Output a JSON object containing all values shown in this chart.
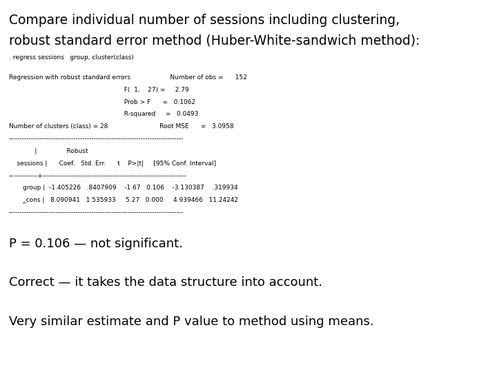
{
  "title_line1": "Compare individual number of sessions including clustering,",
  "title_line2": "robust standard error method (Huber-White-sandwich method):",
  "command_line": ". regress sessions   group, cluster(class)",
  "stata_line1": "Regression with robust standard errors                    Number of obs =      152",
  "stata_line2": "                                                          F(  1,    27) =     2.79",
  "stata_line3": "                                                          Prob > F      =   0.1062",
  "stata_line4": "                                                          R-squared     =   0.0493",
  "stata_line5": "Number of clusters (class) = 28                          Root MSE      =   3.0958",
  "separator1": "------------------------------------------------------------------------------",
  "header1": "             |               Robust",
  "header2": "    sessions |      Coef.   Std. Err.      t    P>|t|     [95% Conf. Interval]",
  "separator2": "-------------+----------------------------------------------------------------",
  "row1": "       group |  -1.405226   .8407909    -1.67   0.106    -3.130387    .319934",
  "row2": "       _cons |   8.090941   1.535933     5.27   0.000     4.939466   11.24242",
  "separator3": "------------------------------------------------------------------------------",
  "footer1": "P = 0.106 — not significant.",
  "footer2": "Correct — it takes the data structure into account.",
  "footer3": "Very similar estimate and P value to method using means.",
  "bg_color": "#ffffff",
  "text_color": "#000000",
  "title_fontsize": 13.5,
  "mono_fontsize": 6.5,
  "footer_fontsize": 13.0
}
